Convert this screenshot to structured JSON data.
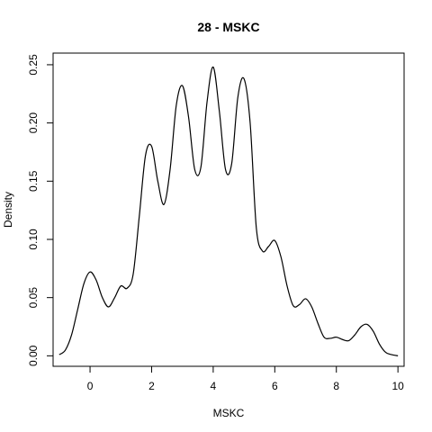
{
  "chart_data": {
    "type": "line",
    "title": "28 - MSKC",
    "xlabel": "MSKC",
    "ylabel": "Density",
    "xlim": [
      -1.2,
      10.2
    ],
    "ylim": [
      -0.009,
      0.26
    ],
    "xticks": [
      0,
      2,
      4,
      6,
      8,
      10
    ],
    "yticks": [
      0.0,
      0.05,
      0.1,
      0.15,
      0.2,
      0.25
    ],
    "xtick_labels": [
      "0",
      "2",
      "4",
      "6",
      "8",
      "10"
    ],
    "ytick_labels": [
      "0.00",
      "0.05",
      "0.10",
      "0.15",
      "0.20",
      "0.25"
    ],
    "grid": false,
    "legend": "none",
    "line_color": "#000000",
    "series": [
      {
        "x": [
          -1.0,
          -0.8,
          -0.6,
          -0.4,
          -0.2,
          0.0,
          0.2,
          0.4,
          0.6,
          0.8,
          1.0,
          1.2,
          1.4,
          1.6,
          1.8,
          2.0,
          2.2,
          2.4,
          2.6,
          2.8,
          3.0,
          3.2,
          3.4,
          3.6,
          3.8,
          4.0,
          4.2,
          4.4,
          4.6,
          4.8,
          5.0,
          5.2,
          5.4,
          5.6,
          5.8,
          6.0,
          6.2,
          6.4,
          6.6,
          6.8,
          7.0,
          7.2,
          7.4,
          7.6,
          7.8,
          8.0,
          8.2,
          8.4,
          8.6,
          8.8,
          9.0,
          9.2,
          9.4,
          9.6,
          9.8,
          10.0
        ],
        "y": [
          0.001,
          0.005,
          0.018,
          0.04,
          0.062,
          0.072,
          0.065,
          0.05,
          0.042,
          0.05,
          0.06,
          0.058,
          0.07,
          0.12,
          0.172,
          0.18,
          0.15,
          0.13,
          0.16,
          0.215,
          0.232,
          0.205,
          0.16,
          0.162,
          0.218,
          0.248,
          0.21,
          0.16,
          0.165,
          0.222,
          0.238,
          0.2,
          0.11,
          0.09,
          0.094,
          0.099,
          0.085,
          0.06,
          0.043,
          0.044,
          0.049,
          0.042,
          0.028,
          0.016,
          0.015,
          0.016,
          0.014,
          0.013,
          0.018,
          0.025,
          0.027,
          0.021,
          0.01,
          0.003,
          0.001,
          0.0
        ]
      }
    ]
  }
}
